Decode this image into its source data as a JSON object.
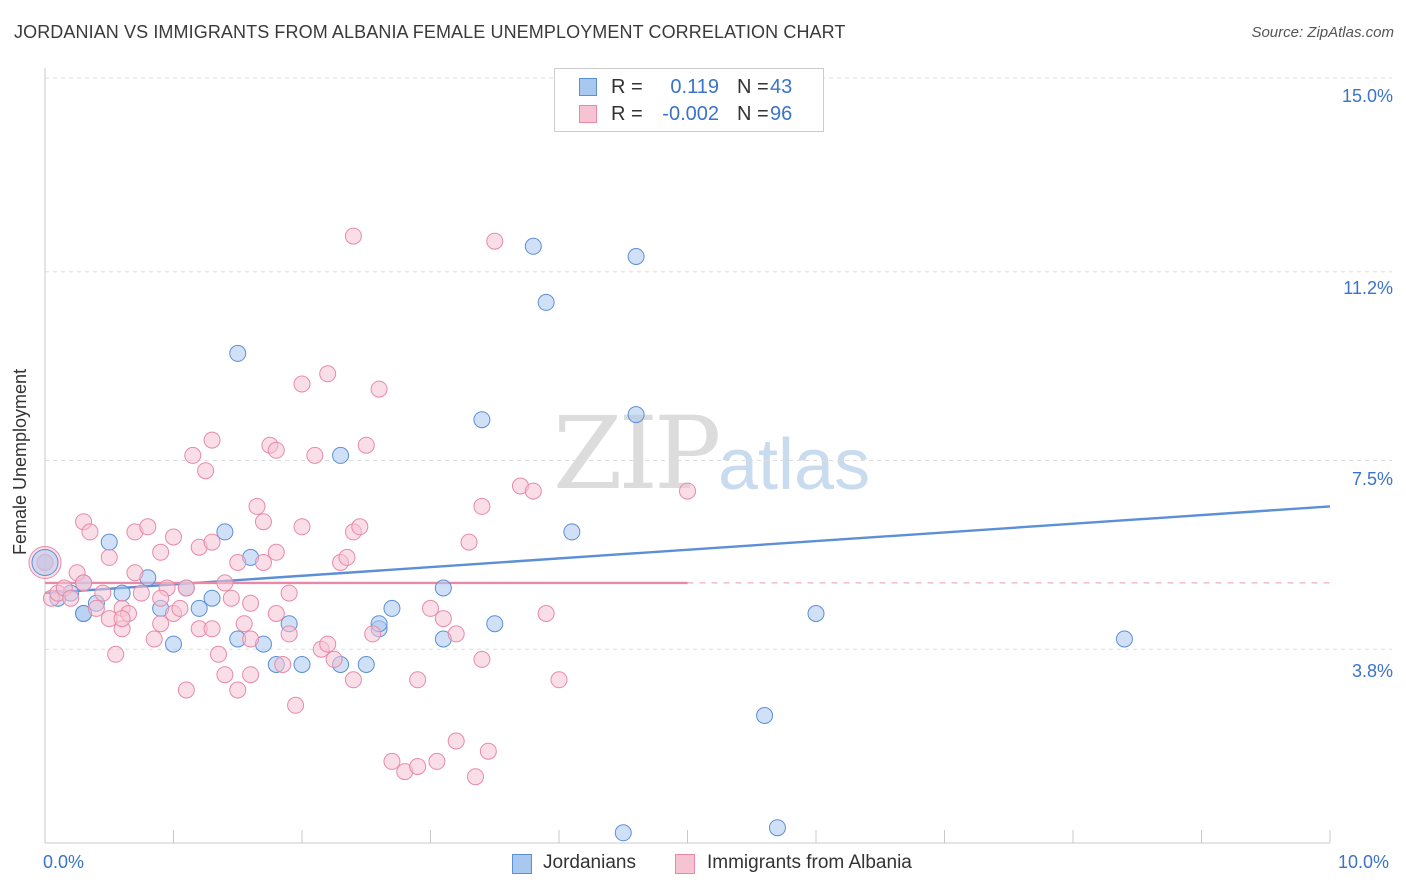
{
  "header": {
    "title": "JORDANIAN VS IMMIGRANTS FROM ALBANIA FEMALE UNEMPLOYMENT CORRELATION CHART",
    "source": "Source: ZipAtlas.com"
  },
  "watermark": {
    "zip": "ZIP",
    "atlas": "atlas"
  },
  "stats": [
    {
      "r_label": "R =",
      "r_value": "0.119",
      "n_label": "N =",
      "n_value": "43",
      "color": "#a9c8f0",
      "border": "#5b8fd6"
    },
    {
      "r_label": "R =",
      "r_value": "-0.002",
      "n_label": "N =",
      "n_value": "96",
      "color": "#f6c3d3",
      "border": "#e88aa7"
    }
  ],
  "legend": [
    {
      "label": "Jordanians",
      "color": "#a9c8f0",
      "border": "#5b8fd6"
    },
    {
      "label": "Immigrants from Albania",
      "color": "#f6c3d3",
      "border": "#e88aa7"
    }
  ],
  "chart_data": {
    "type": "scatter",
    "title": "JORDANIAN VS IMMIGRANTS FROM ALBANIA FEMALE UNEMPLOYMENT CORRELATION CHART",
    "xlabel": "",
    "ylabel": "Female Unemployment",
    "xlim": [
      0,
      10
    ],
    "ylim": [
      0,
      15
    ],
    "x_tick_labels": [
      "0.0%",
      "10.0%"
    ],
    "y_ticks": [
      3.8,
      7.5,
      11.2,
      15.0
    ],
    "y_tick_labels": [
      "3.8%",
      "7.5%",
      "11.2%",
      "15.0%"
    ],
    "grid": true,
    "series": [
      {
        "name": "Jordanians",
        "color": "#5b8fd6",
        "fill": "#a9c8f0",
        "trend": {
          "x": [
            0,
            10
          ],
          "y": [
            4.9,
            6.6
          ],
          "style": "solid"
        },
        "points": [
          [
            0.0,
            5.5
          ],
          [
            0.1,
            4.8
          ],
          [
            0.2,
            4.9
          ],
          [
            0.3,
            5.1
          ],
          [
            0.3,
            4.5
          ],
          [
            0.4,
            4.7
          ],
          [
            0.5,
            5.9
          ],
          [
            0.6,
            4.9
          ],
          [
            0.8,
            5.2
          ],
          [
            0.9,
            4.6
          ],
          [
            1.0,
            3.9
          ],
          [
            1.1,
            5.0
          ],
          [
            1.2,
            4.6
          ],
          [
            1.3,
            4.8
          ],
          [
            1.4,
            6.1
          ],
          [
            1.5,
            4.0
          ],
          [
            1.5,
            9.6
          ],
          [
            1.6,
            5.6
          ],
          [
            1.7,
            3.9
          ],
          [
            1.8,
            3.5
          ],
          [
            1.9,
            4.3
          ],
          [
            2.0,
            3.5
          ],
          [
            2.3,
            3.5
          ],
          [
            2.3,
            7.6
          ],
          [
            2.5,
            3.5
          ],
          [
            2.6,
            4.2
          ],
          [
            2.6,
            4.3
          ],
          [
            2.7,
            4.6
          ],
          [
            3.1,
            4.0
          ],
          [
            3.1,
            5.0
          ],
          [
            3.4,
            8.3
          ],
          [
            3.5,
            4.3
          ],
          [
            3.8,
            11.7
          ],
          [
            3.9,
            10.6
          ],
          [
            4.1,
            6.1
          ],
          [
            4.6,
            8.4
          ],
          [
            4.6,
            11.5
          ],
          [
            4.5,
            0.2
          ],
          [
            5.6,
            2.5
          ],
          [
            5.7,
            0.3
          ],
          [
            6.0,
            4.5
          ],
          [
            8.4,
            4.0
          ],
          [
            0.3,
            4.5
          ]
        ]
      },
      {
        "name": "Immigrants from Albania",
        "color": "#e88aa7",
        "fill": "#f6c3d3",
        "trend": {
          "x": [
            0,
            5
          ],
          "y": [
            5.1,
            5.1
          ],
          "style": "solid",
          "extend_to": 10,
          "extend_style": "dashed"
        },
        "points": [
          [
            0.0,
            5.5
          ],
          [
            0.05,
            4.8
          ],
          [
            0.1,
            4.9
          ],
          [
            0.15,
            5.0
          ],
          [
            0.2,
            4.8
          ],
          [
            0.25,
            5.3
          ],
          [
            0.3,
            6.3
          ],
          [
            0.3,
            5.1
          ],
          [
            0.35,
            6.1
          ],
          [
            0.4,
            4.6
          ],
          [
            0.45,
            4.9
          ],
          [
            0.5,
            4.4
          ],
          [
            0.5,
            5.6
          ],
          [
            0.55,
            3.7
          ],
          [
            0.6,
            4.6
          ],
          [
            0.6,
            4.2
          ],
          [
            0.65,
            4.5
          ],
          [
            0.7,
            5.3
          ],
          [
            0.7,
            6.1
          ],
          [
            0.75,
            4.9
          ],
          [
            0.8,
            6.2
          ],
          [
            0.85,
            4.0
          ],
          [
            0.9,
            5.7
          ],
          [
            0.9,
            4.3
          ],
          [
            0.95,
            5.0
          ],
          [
            1.0,
            4.5
          ],
          [
            1.0,
            6.0
          ],
          [
            1.05,
            4.6
          ],
          [
            1.1,
            3.0
          ],
          [
            1.1,
            5.0
          ],
          [
            1.15,
            7.6
          ],
          [
            1.2,
            4.2
          ],
          [
            1.2,
            5.8
          ],
          [
            1.25,
            7.3
          ],
          [
            1.3,
            7.9
          ],
          [
            1.3,
            5.9
          ],
          [
            1.35,
            3.7
          ],
          [
            1.4,
            3.3
          ],
          [
            1.4,
            5.1
          ],
          [
            1.45,
            4.8
          ],
          [
            1.5,
            3.0
          ],
          [
            1.5,
            5.5
          ],
          [
            1.55,
            4.3
          ],
          [
            1.6,
            4.7
          ],
          [
            1.6,
            3.3
          ],
          [
            1.65,
            6.6
          ],
          [
            1.7,
            5.5
          ],
          [
            1.7,
            6.3
          ],
          [
            1.75,
            7.8
          ],
          [
            1.8,
            7.7
          ],
          [
            1.8,
            5.7
          ],
          [
            1.85,
            3.5
          ],
          [
            1.9,
            4.9
          ],
          [
            1.9,
            4.1
          ],
          [
            1.95,
            2.7
          ],
          [
            2.0,
            9.0
          ],
          [
            2.0,
            6.2
          ],
          [
            2.1,
            7.6
          ],
          [
            2.15,
            3.8
          ],
          [
            2.2,
            3.9
          ],
          [
            2.2,
            9.2
          ],
          [
            2.25,
            3.6
          ],
          [
            2.3,
            5.5
          ],
          [
            2.35,
            5.6
          ],
          [
            2.4,
            3.2
          ],
          [
            2.4,
            6.1
          ],
          [
            2.45,
            6.2
          ],
          [
            2.5,
            7.8
          ],
          [
            2.55,
            4.1
          ],
          [
            2.6,
            8.9
          ],
          [
            2.7,
            1.6
          ],
          [
            2.8,
            1.4
          ],
          [
            2.9,
            3.2
          ],
          [
            2.9,
            1.5
          ],
          [
            3.0,
            4.6
          ],
          [
            3.05,
            1.6
          ],
          [
            3.1,
            4.4
          ],
          [
            3.2,
            2.0
          ],
          [
            3.3,
            5.9
          ],
          [
            3.35,
            1.3
          ],
          [
            3.4,
            3.6
          ],
          [
            3.4,
            6.6
          ],
          [
            3.45,
            1.8
          ],
          [
            3.5,
            11.8
          ],
          [
            3.7,
            7.0
          ],
          [
            3.8,
            6.9
          ],
          [
            3.9,
            4.5
          ],
          [
            4.0,
            3.2
          ],
          [
            2.4,
            11.9
          ],
          [
            5.0,
            6.9
          ],
          [
            0.6,
            4.4
          ],
          [
            0.9,
            4.8
          ],
          [
            1.3,
            4.2
          ],
          [
            1.6,
            4.0
          ],
          [
            1.8,
            4.5
          ],
          [
            3.2,
            4.1
          ]
        ]
      }
    ]
  }
}
